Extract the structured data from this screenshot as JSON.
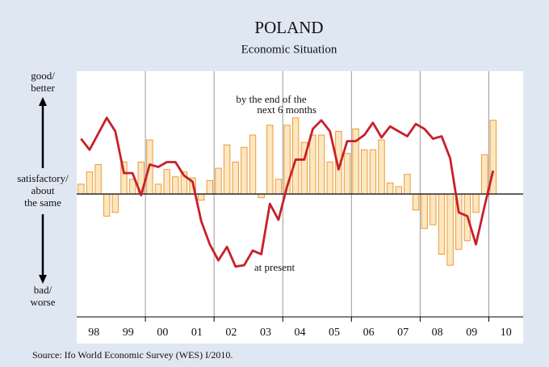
{
  "chart_data": {
    "type": "bar_line",
    "title": "POLAND",
    "subtitle": "Economic Situation",
    "source": "Source: Ifo World Economic Survey (WES) I/2010.",
    "y_labels": [
      [
        "good/",
        "better"
      ],
      [
        "satisfactory/",
        "about",
        "the same"
      ],
      [
        "bad/",
        "worse"
      ]
    ],
    "annotations": [
      [
        "by the end of the",
        "next 6 months"
      ],
      [
        "at present"
      ]
    ],
    "x": [
      1998.125,
      1998.375,
      1998.625,
      1998.875,
      1999.125,
      1999.375,
      1999.625,
      1999.875,
      2000.125,
      2000.375,
      2000.625,
      2000.875,
      2001.125,
      2001.375,
      2001.625,
      2001.875,
      2002.125,
      2002.375,
      2002.625,
      2002.875,
      2003.125,
      2003.375,
      2003.625,
      2003.875,
      2004.125,
      2004.375,
      2004.625,
      2004.875,
      2005.125,
      2005.375,
      2005.625,
      2005.875,
      2006.125,
      2006.375,
      2006.625,
      2006.875,
      2007.125,
      2007.375,
      2007.625,
      2007.875,
      2008.125,
      2008.375,
      2008.625,
      2008.875,
      2009.125,
      2009.375,
      2009.625,
      2009.875,
      2010.125
    ],
    "series": [
      {
        "kind": "bar",
        "color": "#fbe7c0",
        "stroke": "#ee9a3a",
        "values": [
          8,
          18,
          24,
          -18,
          -15,
          26,
          12,
          26,
          44,
          8,
          20,
          14,
          18,
          13,
          -5,
          11,
          21,
          40,
          26,
          38,
          48,
          -3,
          56,
          12,
          56,
          62,
          42,
          48,
          48,
          26,
          51,
          33,
          53,
          36,
          36,
          44,
          9,
          6,
          16,
          -13,
          -28,
          -25,
          -49,
          -58,
          -45,
          -38,
          -15,
          32,
          60
        ]
      },
      {
        "kind": "line",
        "color": "#c8202a",
        "values": [
          45,
          36,
          49,
          62,
          51,
          17,
          17,
          -1,
          24,
          22,
          26,
          26,
          15,
          10,
          -22,
          -41,
          -54,
          -43,
          -59,
          -58,
          -46,
          -49,
          -8,
          -21,
          6,
          28,
          28,
          53,
          60,
          51,
          20,
          43,
          43,
          48,
          58,
          46,
          55,
          51,
          47,
          57,
          53,
          45,
          47,
          29,
          -15,
          -18,
          -41,
          -10,
          19
        ]
      }
    ],
    "xlim": [
      1998,
      2011
    ],
    "ylim": [
      -100,
      100
    ],
    "xticks": [
      {
        "value": 1998.5,
        "label": "98"
      },
      {
        "value": 1999.5,
        "label": "99"
      },
      {
        "value": 2000.5,
        "label": "00"
      },
      {
        "value": 2001.5,
        "label": "01"
      },
      {
        "value": 2002.5,
        "label": "02"
      },
      {
        "value": 2003.5,
        "label": "03"
      },
      {
        "value": 2004.5,
        "label": "04"
      },
      {
        "value": 2005.5,
        "label": "05"
      },
      {
        "value": 2006.5,
        "label": "06"
      },
      {
        "value": 2007.5,
        "label": "07"
      },
      {
        "value": 2008.5,
        "label": "08"
      },
      {
        "value": 2009.5,
        "label": "09"
      },
      {
        "value": 2010.5,
        "label": "10"
      }
    ],
    "xgrid": [
      2000,
      2002,
      2004,
      2006,
      2008,
      2010
    ]
  }
}
